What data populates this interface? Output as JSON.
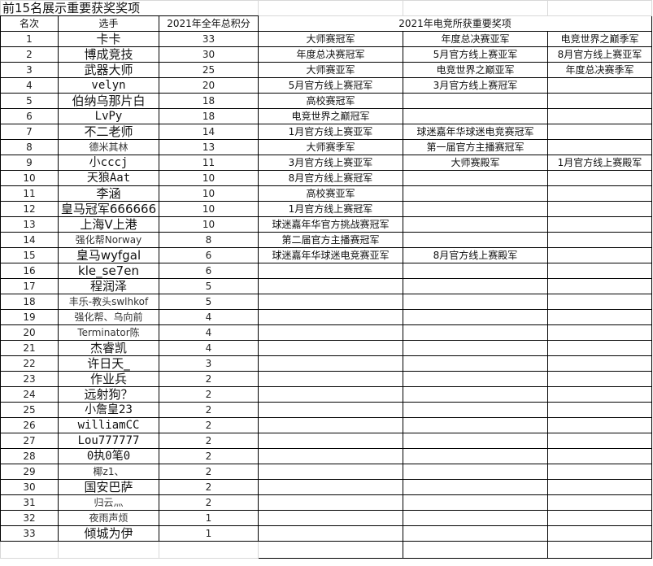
{
  "title": "前15名展示重要获奖奖项",
  "headers": {
    "rank": "名次",
    "player": "选手",
    "points": "2021年全年总积分",
    "awards": "2021年电竞所获重要奖项"
  },
  "rows": [
    {
      "rank": "1",
      "player": "卡卡",
      "points": "33",
      "awards": [
        "大师赛冠军",
        "年度总决赛亚军",
        "电竞世界之巅季军"
      ]
    },
    {
      "rank": "2",
      "player": "博成竞技",
      "points": "30",
      "awards": [
        "年度总决赛冠军",
        "5月官方线上赛亚军",
        "8月官方线上赛亚军"
      ]
    },
    {
      "rank": "3",
      "player": "武器大师",
      "points": "25",
      "awards": [
        "大师赛亚军",
        "电竞世界之巅亚军",
        "年度总决赛季军"
      ]
    },
    {
      "rank": "4",
      "player": "velyn",
      "points": "20",
      "awards": [
        "5月官方线上赛冠军",
        "3月官方线上赛冠军",
        ""
      ]
    },
    {
      "rank": "5",
      "player": "伯纳乌那片白",
      "points": "18",
      "awards": [
        "高校赛冠军",
        "",
        ""
      ]
    },
    {
      "rank": "6",
      "player": "LvPy",
      "points": "18",
      "awards": [
        "电竞世界之巅冠军",
        "",
        ""
      ]
    },
    {
      "rank": "7",
      "player": "不二老师",
      "points": "14",
      "awards": [
        "1月官方线上赛亚军",
        "球迷嘉年华球迷电竞赛冠军",
        ""
      ]
    },
    {
      "rank": "8",
      "player": "德米其林",
      "points": "13",
      "awards": [
        "大师赛季军",
        "第一届官方主播赛冠军",
        ""
      ]
    },
    {
      "rank": "9",
      "player": "小cccj",
      "points": "11",
      "awards": [
        "3月官方线上赛亚军",
        "大师赛殿军",
        "1月官方线上赛殿军"
      ]
    },
    {
      "rank": "10",
      "player": "天狼Aat",
      "points": "10",
      "awards": [
        "8月官方线上赛冠军",
        "",
        ""
      ]
    },
    {
      "rank": "11",
      "player": "李涵",
      "points": "10",
      "awards": [
        "高校赛亚军",
        "",
        ""
      ]
    },
    {
      "rank": "12",
      "player": "皇马冠军666666",
      "points": "10",
      "awards": [
        "1月官方线上赛冠军",
        "",
        ""
      ]
    },
    {
      "rank": "13",
      "player": "上海V上港",
      "points": "10",
      "awards": [
        "球迷嘉年华官方挑战赛冠军",
        "",
        ""
      ]
    },
    {
      "rank": "14",
      "player": "强化帮Norway",
      "points": "8",
      "awards": [
        "第二届官方主播赛冠军",
        "",
        ""
      ]
    },
    {
      "rank": "15",
      "player": "皇马wyfgal",
      "points": "6",
      "awards": [
        "球迷嘉年华球迷电竞赛亚军",
        "8月官方线上赛殿军",
        ""
      ]
    },
    {
      "rank": "16",
      "player": "kle_se7en",
      "points": "6",
      "awards": [
        "",
        "",
        ""
      ]
    },
    {
      "rank": "17",
      "player": "程润泽",
      "points": "5",
      "awards": [
        "",
        "",
        ""
      ]
    },
    {
      "rank": "18",
      "player": "丰乐-教头swlhkof",
      "points": "5",
      "awards": [
        "",
        "",
        ""
      ]
    },
    {
      "rank": "19",
      "player": "强化帮、乌向前",
      "points": "4",
      "awards": [
        "",
        "",
        ""
      ]
    },
    {
      "rank": "20",
      "player": "Terminator陈",
      "points": "4",
      "awards": [
        "",
        "",
        ""
      ]
    },
    {
      "rank": "21",
      "player": "杰睿凯",
      "points": "4",
      "awards": [
        "",
        "",
        ""
      ]
    },
    {
      "rank": "22",
      "player": "许日天_",
      "points": "3",
      "awards": [
        "",
        "",
        ""
      ]
    },
    {
      "rank": "23",
      "player": "作业兵",
      "points": "2",
      "awards": [
        "",
        "",
        ""
      ]
    },
    {
      "rank": "24",
      "player": "远射狗？",
      "points": "2",
      "awards": [
        "",
        "",
        ""
      ]
    },
    {
      "rank": "25",
      "player": "小詹皇23",
      "points": "2",
      "awards": [
        "",
        "",
        ""
      ]
    },
    {
      "rank": "26",
      "player": "williamCC",
      "points": "2",
      "awards": [
        "",
        "",
        ""
      ]
    },
    {
      "rank": "27",
      "player": "Lou777777",
      "points": "2",
      "awards": [
        "",
        "",
        ""
      ]
    },
    {
      "rank": "28",
      "player": "0执0笔0",
      "points": "2",
      "awards": [
        "",
        "",
        ""
      ]
    },
    {
      "rank": "29",
      "player": "椰z1、",
      "points": "2",
      "awards": [
        "",
        "",
        ""
      ]
    },
    {
      "rank": "30",
      "player": "国安巴萨",
      "points": "2",
      "awards": [
        "",
        "",
        ""
      ]
    },
    {
      "rank": "31",
      "player": "归云灬",
      "points": "2",
      "awards": [
        "",
        "",
        ""
      ]
    },
    {
      "rank": "32",
      "player": "夜雨声烦",
      "points": "1",
      "awards": [
        "",
        "",
        ""
      ]
    },
    {
      "rank": "33",
      "player": "倾城为伊",
      "points": "1",
      "awards": [
        "",
        "",
        ""
      ]
    }
  ]
}
